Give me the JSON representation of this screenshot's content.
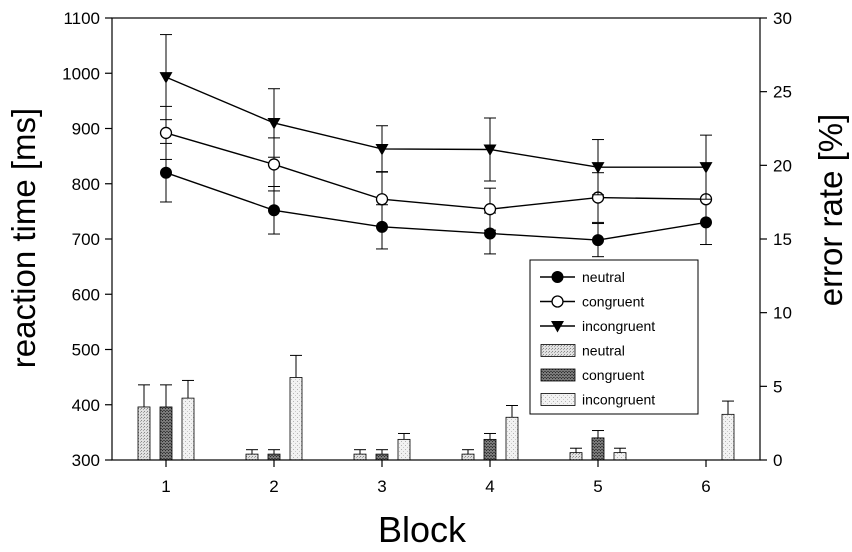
{
  "chart_data": {
    "type": "line",
    "xlabel": "Block",
    "ylabel_left": "reaction time [ms]",
    "ylabel_right": "error rate [%]",
    "x": [
      1,
      2,
      3,
      4,
      5,
      6
    ],
    "xlim": [
      0.5,
      6.5
    ],
    "ylim_left": [
      300,
      1100
    ],
    "ylim_right": [
      0,
      30
    ],
    "yticks_left": [
      300,
      400,
      500,
      600,
      700,
      800,
      900,
      1000,
      1100
    ],
    "yticks_right": [
      0,
      5,
      10,
      15,
      20,
      25,
      30
    ],
    "legend_position": "center-right",
    "grid": false,
    "line_series": [
      {
        "name": "neutral",
        "marker": "filled-circle",
        "axis": "left",
        "values": [
          820,
          752,
          722,
          710,
          698,
          730
        ],
        "errors": [
          53,
          43,
          40,
          37,
          30,
          40
        ]
      },
      {
        "name": "congruent",
        "marker": "open-circle",
        "axis": "left",
        "values": [
          892,
          835,
          772,
          754,
          775,
          772
        ],
        "errors": [
          48,
          48,
          50,
          38,
          45,
          0
        ]
      },
      {
        "name": "incongruent",
        "marker": "filled-triangle-down",
        "axis": "left",
        "values": [
          993,
          910,
          863,
          862,
          830,
          830
        ],
        "errors": [
          77,
          62,
          42,
          57,
          50,
          58
        ]
      }
    ],
    "bar_series": [
      {
        "name": "neutral",
        "fill": "light-stipple",
        "axis": "right",
        "values": [
          3.6,
          0.4,
          0.4,
          0.4,
          0.5,
          null
        ],
        "errors": [
          1.5,
          0.3,
          0.3,
          0.3,
          0.3,
          null
        ]
      },
      {
        "name": "congruent",
        "fill": "dark-stipple",
        "axis": "right",
        "values": [
          3.6,
          0.4,
          0.4,
          1.4,
          1.5,
          null
        ],
        "errors": [
          1.5,
          0.3,
          0.3,
          0.4,
          0.5,
          null
        ]
      },
      {
        "name": "incongruent",
        "fill": "lightest-stipple",
        "axis": "right",
        "values": [
          4.2,
          5.6,
          1.4,
          2.9,
          0.5,
          3.1
        ],
        "errors": [
          1.2,
          1.5,
          0.4,
          0.8,
          0.3,
          0.9
        ]
      }
    ]
  }
}
